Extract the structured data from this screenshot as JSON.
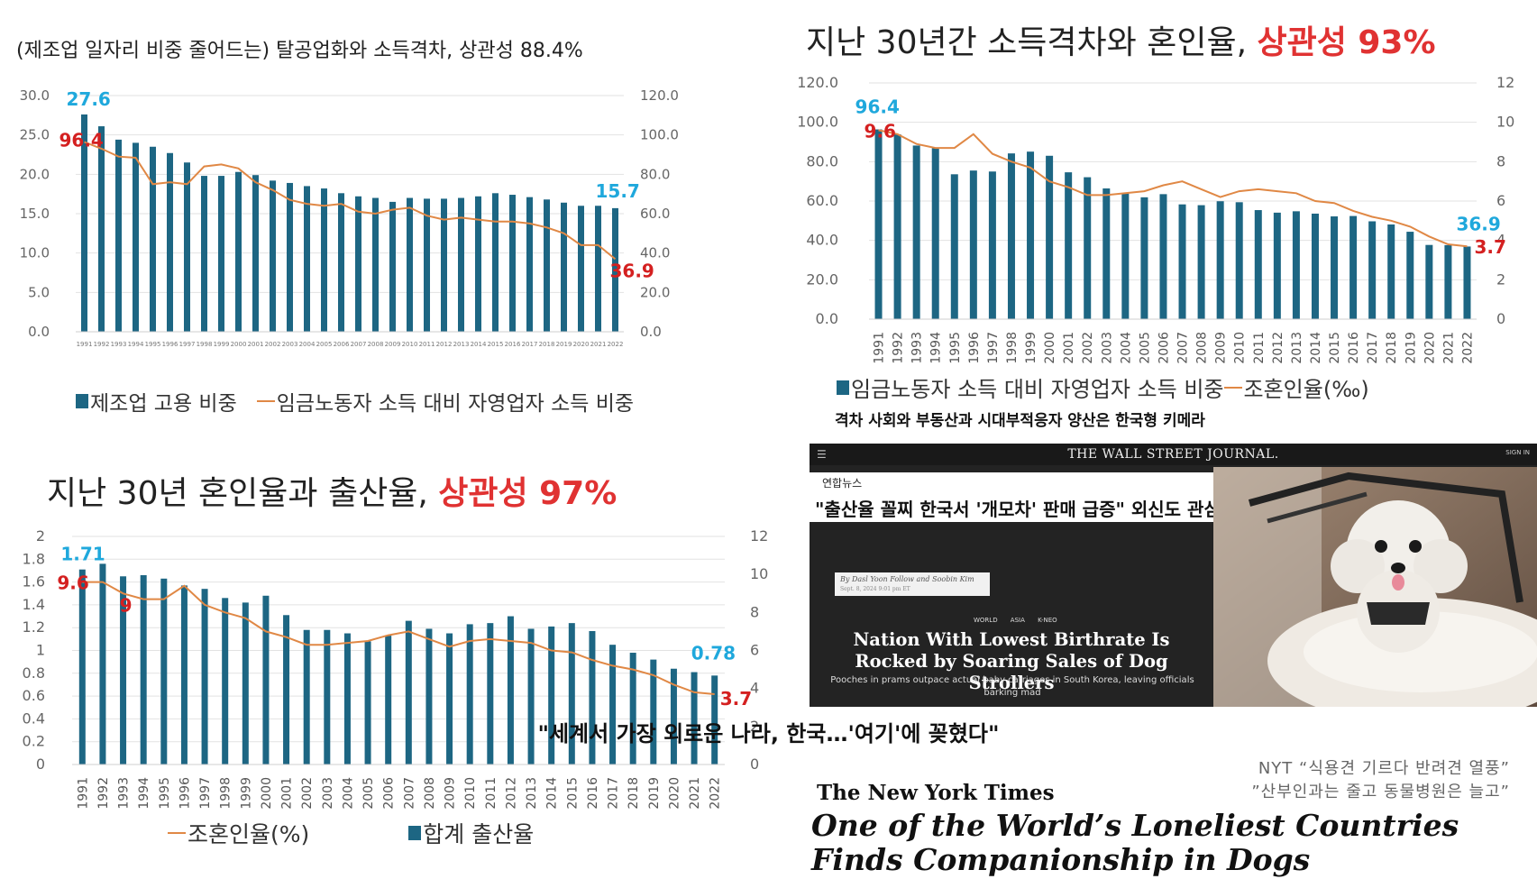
{
  "chart_data": [
    {
      "type": "bar+line",
      "title": "(제조업 일자리 비중 줄어드는) 탈공업화와 소득격차, 상관성 88.4%",
      "title_highlight": "",
      "categories": [
        "1991",
        "1992",
        "1993",
        "1994",
        "1995",
        "1996",
        "1997",
        "1998",
        "1999",
        "2000",
        "2001",
        "2002",
        "2003",
        "2004",
        "2005",
        "2006",
        "2007",
        "2008",
        "2009",
        "2010",
        "2011",
        "2012",
        "2013",
        "2014",
        "2015",
        "2016",
        "2017",
        "2018",
        "2019",
        "2020",
        "2021",
        "2022"
      ],
      "series": [
        {
          "name": "제조업 고용 비중",
          "kind": "bar",
          "axis": "left",
          "color": "#1d6683",
          "values": [
            27.6,
            26.1,
            24.4,
            24.0,
            23.5,
            22.7,
            21.5,
            19.8,
            19.8,
            20.3,
            19.9,
            19.2,
            18.9,
            18.5,
            18.2,
            17.6,
            17.2,
            17.0,
            16.5,
            17.0,
            16.9,
            16.9,
            17.0,
            17.2,
            17.6,
            17.4,
            17.1,
            16.8,
            16.4,
            16.0,
            16.0,
            15.7
          ]
        },
        {
          "name": "임금노동자 소득 대비 자영업자 소득 비중",
          "kind": "line",
          "axis": "right",
          "color": "#e08845",
          "values": [
            96.4,
            93,
            89,
            88.4,
            75,
            76,
            75,
            84,
            85,
            83,
            76,
            72,
            67,
            65,
            64,
            65,
            61,
            60,
            62,
            63,
            59,
            57,
            58,
            57,
            56,
            56,
            55,
            53,
            50,
            44,
            44,
            36.9
          ]
        }
      ],
      "left_axis": {
        "min": 0,
        "max": 30,
        "ticks": [
          "30.0",
          "25.0",
          "20.0",
          "15.0",
          "10.0",
          "5.0",
          "0.0"
        ]
      },
      "right_axis": {
        "min": 0,
        "max": 120,
        "ticks": [
          "120.0",
          "100.0",
          "80.0",
          "60.0",
          "40.0",
          "20.0",
          "0.0"
        ]
      },
      "annotations": [
        {
          "text": "27.6",
          "color": "#1fa8dc"
        },
        {
          "text": "96.4",
          "color": "#d42020"
        },
        {
          "text": "15.7",
          "color": "#1fa8dc"
        },
        {
          "text": "36.9",
          "color": "#d42020"
        }
      ],
      "legend_order": [
        "bar",
        "line"
      ]
    },
    {
      "type": "bar+line",
      "title": "지난 30년간 소득격차와 혼인율, ",
      "title_highlight": "상관성 93%",
      "categories": [
        "1991",
        "1992",
        "1993",
        "1994",
        "1995",
        "1996",
        "1997",
        "1998",
        "1999",
        "2000",
        "2001",
        "2002",
        "2003",
        "2004",
        "2005",
        "2006",
        "2007",
        "2008",
        "2009",
        "2010",
        "2011",
        "2012",
        "2013",
        "2014",
        "2015",
        "2016",
        "2017",
        "2018",
        "2019",
        "2020",
        "2021",
        "2022"
      ],
      "series": [
        {
          "name": "임금노동자 소득 대비 자영업자 소득 비중",
          "kind": "bar",
          "axis": "left",
          "color": "#1d6683",
          "values": [
            96.4,
            93.9,
            88.2,
            86.8,
            73.6,
            75.5,
            75.0,
            84.2,
            85.1,
            83.0,
            74.6,
            72.1,
            66.4,
            63.9,
            61.9,
            63.5,
            58.3,
            57.9,
            59.9,
            59.4,
            55.4,
            54.1,
            54.8,
            53.6,
            52.2,
            52.4,
            49.7,
            48.1,
            44.4,
            37.7,
            37.6,
            36.9
          ]
        },
        {
          "name": "조혼인율(‰)",
          "kind": "line",
          "axis": "right",
          "color": "#e08845",
          "values": [
            9.6,
            9.4,
            8.9,
            8.7,
            8.7,
            9.4,
            8.4,
            8.0,
            7.7,
            7.0,
            6.7,
            6.3,
            6.3,
            6.4,
            6.5,
            6.8,
            7.0,
            6.6,
            6.2,
            6.5,
            6.6,
            6.5,
            6.4,
            6.0,
            5.9,
            5.5,
            5.2,
            5.0,
            4.7,
            4.2,
            3.8,
            3.7
          ]
        }
      ],
      "left_axis": {
        "min": 0,
        "max": 120,
        "ticks": [
          "120.0",
          "100.0",
          "80.0",
          "60.0",
          "40.0",
          "20.0",
          "0.0"
        ]
      },
      "right_axis": {
        "min": 0,
        "max": 12,
        "ticks": [
          "12",
          "10",
          "8",
          "6",
          "4",
          "2",
          "0"
        ]
      },
      "annotations": [
        {
          "text": "96.4",
          "color": "#1fa8dc"
        },
        {
          "text": "9.6",
          "color": "#d42020"
        },
        {
          "text": "36.9",
          "color": "#1fa8dc"
        },
        {
          "text": "3.7",
          "color": "#d42020"
        }
      ],
      "legend_order": [
        "bar",
        "line"
      ],
      "caption": "격차 사회와 부동산과 시대부적응자 양산은 한국형 키메라"
    },
    {
      "type": "bar+line",
      "title": "지난 30년 혼인율과 출산율, ",
      "title_highlight": "상관성 97%",
      "categories": [
        "1991",
        "1992",
        "1993",
        "1994",
        "1995",
        "1996",
        "1997",
        "1998",
        "1999",
        "2000",
        "2001",
        "2002",
        "2003",
        "2004",
        "2005",
        "2006",
        "2007",
        "2008",
        "2009",
        "2010",
        "2011",
        "2012",
        "2013",
        "2014",
        "2015",
        "2016",
        "2017",
        "2018",
        "2019",
        "2020",
        "2021",
        "2022"
      ],
      "series": [
        {
          "name": "합계 출산율",
          "kind": "bar",
          "axis": "left",
          "color": "#1d6683",
          "values": [
            1.71,
            1.76,
            1.65,
            1.66,
            1.63,
            1.57,
            1.54,
            1.46,
            1.42,
            1.48,
            1.31,
            1.18,
            1.18,
            1.15,
            1.08,
            1.13,
            1.26,
            1.19,
            1.15,
            1.23,
            1.24,
            1.3,
            1.19,
            1.21,
            1.24,
            1.17,
            1.05,
            0.98,
            0.92,
            0.84,
            0.81,
            0.78
          ]
        },
        {
          "name": "조혼인율(%)",
          "kind": "line",
          "axis": "right",
          "color": "#e08845",
          "values": [
            9.6,
            9.6,
            9.0,
            8.7,
            8.7,
            9.4,
            8.4,
            8.0,
            7.7,
            7.0,
            6.7,
            6.3,
            6.3,
            6.4,
            6.5,
            6.8,
            7.0,
            6.6,
            6.2,
            6.5,
            6.6,
            6.5,
            6.4,
            6.0,
            5.9,
            5.5,
            5.2,
            5.0,
            4.7,
            4.2,
            3.8,
            3.7
          ]
        }
      ],
      "left_axis": {
        "min": 0,
        "max": 2,
        "ticks": [
          "2",
          "1.8",
          "1.6",
          "1.4",
          "1.2",
          "1",
          "0.8",
          "0.6",
          "0.4",
          "0.2",
          "0"
        ]
      },
      "right_axis": {
        "min": 0,
        "max": 12,
        "ticks": [
          "12",
          "10",
          "8",
          "6",
          "4",
          "2",
          "0"
        ]
      },
      "annotations": [
        {
          "text": "1.71",
          "color": "#1fa8dc"
        },
        {
          "text": "9.6",
          "color": "#d42020"
        },
        {
          "text": "9",
          "color": "#d42020"
        },
        {
          "text": "0.78",
          "color": "#1fa8dc"
        },
        {
          "text": "3.7",
          "color": "#d42020"
        }
      ],
      "legend_order": [
        "line",
        "bar"
      ]
    }
  ],
  "news": {
    "wsj_title": "THE WALL STREET JOURNAL.",
    "wsj_signin": "SIGN IN",
    "yonhap_source": "연합뉴스",
    "yonhap_headline": "\"출산율 꼴찌 한국서 '개모차' 판매 급증\" 외신도 관심",
    "byline_authors": "By Dasl Yoon  Follow  and Soobin Kim",
    "byline_date": "Sept. 8, 2024 9:01 pm ET",
    "section_tags": "WORLD ASIA K-NEO",
    "headline": "Nation With Lowest Birthrate Is Rocked by Soaring Sales of Dog Strollers",
    "subhead": "Pooches in prams outpace actual baby carriages in South Korea, leaving officials barking mad",
    "quote": "\"세계서 가장 외로운 나라, 한국…'여기'에 꽂혔다\"",
    "nyt_quote_1": "NYT “식용견 기르다 반려견 열풍”",
    "nyt_quote_2": "”산부인과는 줄고 동물병원은 늘고”",
    "nyt_logo": "The New York Times",
    "nyt_headline_1": "One of the World’s Loneliest Countries",
    "nyt_headline_2": "Finds Companionship in Dogs"
  }
}
